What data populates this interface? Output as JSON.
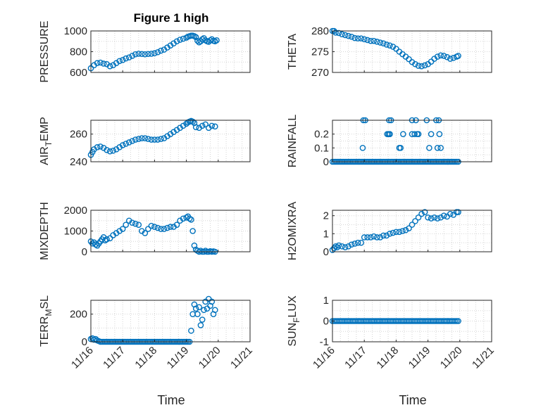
{
  "title": "Figure 1 high",
  "colors": {
    "marker": "#0072BD",
    "axis": "#262626",
    "grid": "#d6d6d6"
  },
  "chart_data": [
    {
      "type": "scatter",
      "id": "pressure",
      "title": "Figure 1 high",
      "ylabel": "PRESSURE",
      "ylim": [
        600,
        1000
      ],
      "yticks": [
        600,
        800,
        1000
      ],
      "ytick_labels": [
        "600",
        "800",
        "1000"
      ],
      "xlim": [
        0,
        5
      ],
      "xticks": [
        0,
        1,
        2,
        3,
        4,
        5
      ],
      "xtick_labels": [
        "11/16",
        "11/17",
        "11/18",
        "11/19",
        "11/20",
        "11/21"
      ],
      "x": [
        0,
        0.1,
        0.2,
        0.3,
        0.4,
        0.5,
        0.6,
        0.7,
        0.8,
        0.9,
        1.0,
        1.1,
        1.2,
        1.3,
        1.4,
        1.5,
        1.6,
        1.7,
        1.8,
        1.9,
        2.0,
        2.1,
        2.2,
        2.3,
        2.4,
        2.5,
        2.6,
        2.7,
        2.8,
        2.9,
        3.0,
        3.05,
        3.1,
        3.15,
        3.2,
        3.25,
        3.3,
        3.35,
        3.4,
        3.45,
        3.5,
        3.55,
        3.6,
        3.65,
        3.7,
        3.75,
        3.8,
        3.85,
        3.9,
        3.95
      ],
      "y": [
        640,
        670,
        690,
        695,
        685,
        680,
        660,
        670,
        690,
        710,
        720,
        735,
        745,
        760,
        775,
        780,
        778,
        775,
        778,
        780,
        785,
        795,
        810,
        820,
        840,
        860,
        880,
        900,
        915,
        925,
        935,
        945,
        950,
        955,
        955,
        950,
        940,
        905,
        890,
        900,
        920,
        930,
        910,
        900,
        895,
        910,
        920,
        905,
        900,
        910
      ]
    },
    {
      "type": "scatter",
      "id": "theta",
      "ylabel": "THETA",
      "ylim": [
        270,
        280
      ],
      "yticks": [
        270,
        275,
        280
      ],
      "ytick_labels": [
        "270",
        "275",
        "280"
      ],
      "xlim": [
        0,
        5
      ],
      "xticks": [
        0,
        1,
        2,
        3,
        4,
        5
      ],
      "xtick_labels": [
        "11/16",
        "11/17",
        "11/18",
        "11/19",
        "11/20",
        "11/21"
      ],
      "x": [
        0,
        0.05,
        0.1,
        0.2,
        0.3,
        0.4,
        0.5,
        0.6,
        0.7,
        0.8,
        0.9,
        1.0,
        1.1,
        1.2,
        1.3,
        1.4,
        1.5,
        1.6,
        1.7,
        1.8,
        1.9,
        2.0,
        2.1,
        2.2,
        2.3,
        2.4,
        2.5,
        2.6,
        2.7,
        2.8,
        2.9,
        3.0,
        3.1,
        3.2,
        3.3,
        3.4,
        3.5,
        3.6,
        3.7,
        3.8,
        3.9,
        3.95
      ],
      "y": [
        280,
        280,
        279.6,
        279.5,
        279.2,
        279,
        278.8,
        278.6,
        278.3,
        278.2,
        278.2,
        278,
        277.8,
        277.6,
        277.6,
        277.4,
        277.2,
        277,
        276.7,
        276.5,
        276.2,
        275.7,
        275,
        274.4,
        273.8,
        273.2,
        272.5,
        272,
        271.6,
        271.5,
        271.7,
        272,
        272.6,
        273.3,
        273.8,
        274.1,
        274,
        273.7,
        273.3,
        273.5,
        273.8,
        274
      ]
    },
    {
      "type": "scatter",
      "id": "air_temp",
      "ylabel": "AIR_TEMP",
      "ylim": [
        240,
        270
      ],
      "yticks": [
        240,
        260
      ],
      "ytick_labels": [
        "240",
        "260"
      ],
      "xlim": [
        0,
        5
      ],
      "xticks": [
        0,
        1,
        2,
        3,
        4,
        5
      ],
      "xtick_labels": [
        "11/16",
        "11/17",
        "11/18",
        "11/19",
        "11/20",
        "11/21"
      ],
      "x": [
        0,
        0.05,
        0.1,
        0.2,
        0.3,
        0.4,
        0.5,
        0.6,
        0.7,
        0.8,
        0.9,
        1.0,
        1.1,
        1.2,
        1.3,
        1.4,
        1.5,
        1.6,
        1.7,
        1.8,
        1.9,
        2.0,
        2.1,
        2.2,
        2.3,
        2.4,
        2.5,
        2.6,
        2.7,
        2.8,
        2.9,
        3.0,
        3.05,
        3.1,
        3.15,
        3.2,
        3.25,
        3.3,
        3.4,
        3.5,
        3.6,
        3.7,
        3.8,
        3.9
      ],
      "y": [
        245,
        247,
        249,
        250.5,
        251,
        250,
        248.5,
        247.5,
        248,
        249,
        250.5,
        252,
        253,
        254,
        255,
        256,
        256.5,
        257,
        257,
        256.5,
        256,
        256,
        256,
        256.5,
        257,
        258.5,
        260,
        261.5,
        263,
        264.5,
        266,
        267.5,
        268.5,
        269,
        269.5,
        269,
        268,
        265,
        264.5,
        266,
        267,
        264.5,
        266,
        265.5
      ]
    },
    {
      "type": "scatter",
      "id": "rainfall",
      "ylabel": "RAINFALL",
      "ylim": [
        0,
        0.3
      ],
      "yticks": [
        0,
        0.1,
        0.2
      ],
      "ytick_labels": [
        "0",
        "0.1",
        "0.2"
      ],
      "xlim": [
        0,
        5
      ],
      "xticks": [
        0,
        1,
        2,
        3,
        4,
        5
      ],
      "xtick_labels": [
        "11/16",
        "11/17",
        "11/18",
        "11/19",
        "11/20",
        "11/21"
      ],
      "x": [
        0,
        0.05,
        0.1,
        0.15,
        0.2,
        0.25,
        0.3,
        0.35,
        0.4,
        0.45,
        0.5,
        0.55,
        0.6,
        0.65,
        0.7,
        0.75,
        0.8,
        0.85,
        0.9,
        0.95,
        1.0,
        1.05,
        1.1,
        1.15,
        1.2,
        1.25,
        1.3,
        1.35,
        1.4,
        1.45,
        1.5,
        1.55,
        1.6,
        1.65,
        1.7,
        1.75,
        1.8,
        1.85,
        1.9,
        1.95,
        2.0,
        2.05,
        2.1,
        2.15,
        2.2,
        2.25,
        2.3,
        2.35,
        2.4,
        2.45,
        2.5,
        2.55,
        2.6,
        2.65,
        2.7,
        2.75,
        2.8,
        2.85,
        2.9,
        2.95,
        3.0,
        3.05,
        3.1,
        3.15,
        3.2,
        3.25,
        3.3,
        3.35,
        3.4,
        3.45,
        3.5,
        3.55,
        3.6,
        3.65,
        3.7,
        3.75,
        3.8,
        3.85,
        3.9,
        3.95,
        0.97,
        1.03,
        0.95,
        1.72,
        1.76,
        1.8,
        1.84,
        1.78,
        1.8,
        2.1,
        2.14,
        2.22,
        2.5,
        2.5,
        2.62,
        2.58,
        2.66,
        2.7,
        2.96,
        3.1,
        3.04,
        3.34,
        3.26,
        3.3,
        3.4,
        3.36
      ],
      "y": [
        0,
        0,
        0,
        0,
        0,
        0,
        0,
        0,
        0,
        0,
        0,
        0,
        0,
        0,
        0,
        0,
        0,
        0,
        0,
        0,
        0,
        0,
        0,
        0,
        0,
        0,
        0,
        0,
        0,
        0,
        0,
        0,
        0,
        0,
        0,
        0,
        0,
        0,
        0,
        0,
        0,
        0,
        0,
        0,
        0,
        0,
        0,
        0,
        0,
        0,
        0,
        0,
        0,
        0,
        0,
        0,
        0,
        0,
        0,
        0,
        0,
        0,
        0,
        0,
        0,
        0,
        0,
        0,
        0,
        0,
        0,
        0,
        0,
        0,
        0,
        0,
        0,
        0,
        0,
        0,
        0.3,
        0.3,
        0.1,
        0.2,
        0.2,
        0.2,
        0.3,
        0.3,
        0.2,
        0.1,
        0.1,
        0.2,
        0.3,
        0.2,
        0.3,
        0.2,
        0.2,
        0.2,
        0.3,
        0.2,
        0.1,
        0.3,
        0.3,
        0.1,
        0.1,
        0.2
      ]
    },
    {
      "type": "scatter",
      "id": "mixdepth",
      "ylabel": "MIXDEPTH",
      "ylim": [
        0,
        2000
      ],
      "yticks": [
        0,
        1000,
        2000
      ],
      "ytick_labels": [
        "0",
        "1000",
        "2000"
      ],
      "xlim": [
        0,
        5
      ],
      "xticks": [
        0,
        1,
        2,
        3,
        4,
        5
      ],
      "xtick_labels": [
        "11/16",
        "11/17",
        "11/18",
        "11/19",
        "11/20",
        "11/21"
      ],
      "x": [
        0,
        0.05,
        0.1,
        0.15,
        0.2,
        0.25,
        0.3,
        0.35,
        0.4,
        0.45,
        0.5,
        0.6,
        0.7,
        0.8,
        0.9,
        1.0,
        1.1,
        1.2,
        1.3,
        1.4,
        1.5,
        1.6,
        1.7,
        1.8,
        1.9,
        2.0,
        2.1,
        2.2,
        2.3,
        2.4,
        2.5,
        2.6,
        2.7,
        2.8,
        2.9,
        3.0,
        3.05,
        3.1,
        3.15,
        3.2,
        3.25,
        3.3,
        3.35,
        3.4,
        3.45,
        3.5,
        3.55,
        3.6,
        3.65,
        3.7,
        3.75,
        3.8,
        3.85,
        3.9
      ],
      "y": [
        500,
        400,
        450,
        350,
        300,
        400,
        500,
        600,
        700,
        550,
        600,
        650,
        800,
        900,
        1000,
        1100,
        1300,
        1500,
        1400,
        1350,
        1300,
        1000,
        900,
        1100,
        1250,
        1200,
        1150,
        1100,
        1100,
        1150,
        1200,
        1200,
        1300,
        1500,
        1600,
        1650,
        1700,
        1600,
        1550,
        1000,
        300,
        100,
        50,
        0,
        50,
        0,
        0,
        50,
        0,
        0,
        30,
        0,
        20,
        0
      ]
    },
    {
      "type": "scatter",
      "id": "h2omixra",
      "ylabel": "H2OMIXRA",
      "ylim": [
        0,
        2.3
      ],
      "yticks": [
        0,
        1,
        2
      ],
      "ytick_labels": [
        "0",
        "1",
        "2"
      ],
      "xlim": [
        0,
        5
      ],
      "xticks": [
        0,
        1,
        2,
        3,
        4,
        5
      ],
      "xtick_labels": [
        "11/16",
        "11/17",
        "11/18",
        "11/19",
        "11/20",
        "11/21"
      ],
      "x": [
        0,
        0.05,
        0.1,
        0.15,
        0.2,
        0.3,
        0.4,
        0.5,
        0.6,
        0.7,
        0.8,
        0.9,
        1.0,
        1.1,
        1.2,
        1.3,
        1.4,
        1.5,
        1.6,
        1.7,
        1.8,
        1.9,
        2.0,
        2.1,
        2.2,
        2.3,
        2.4,
        2.5,
        2.6,
        2.7,
        2.8,
        2.9,
        3.0,
        3.1,
        3.2,
        3.3,
        3.4,
        3.5,
        3.6,
        3.7,
        3.8,
        3.9,
        3.95
      ],
      "y": [
        0.1,
        0.2,
        0.3,
        0.25,
        0.35,
        0.3,
        0.25,
        0.3,
        0.4,
        0.45,
        0.5,
        0.5,
        0.8,
        0.8,
        0.8,
        0.85,
        0.8,
        0.8,
        0.9,
        0.9,
        1.0,
        1.05,
        1.1,
        1.1,
        1.15,
        1.2,
        1.3,
        1.5,
        1.7,
        1.9,
        2.1,
        2.2,
        1.9,
        1.85,
        1.9,
        1.85,
        1.9,
        2.0,
        1.95,
        2.1,
        2.05,
        2.2,
        2.2
      ]
    },
    {
      "type": "scatter",
      "id": "terr_msl",
      "ylabel": "TERR_MSL",
      "ylim": [
        0,
        300
      ],
      "yticks": [
        0,
        200
      ],
      "ytick_labels": [
        "0",
        "200"
      ],
      "xlim": [
        0,
        5
      ],
      "xticks": [
        0,
        1,
        2,
        3,
        4,
        5
      ],
      "xtick_labels": [
        "11/16",
        "11/17",
        "11/18",
        "11/19",
        "11/20",
        "11/21"
      ],
      "x": [
        0,
        0.05,
        0.1,
        0.15,
        0.2,
        0.25,
        0.3,
        0.35,
        0.4,
        0.45,
        0.5,
        0.55,
        0.6,
        0.65,
        0.7,
        0.75,
        0.8,
        0.85,
        0.9,
        0.95,
        1.0,
        1.05,
        1.1,
        1.15,
        1.2,
        1.25,
        1.3,
        1.35,
        1.4,
        1.45,
        1.5,
        1.55,
        1.6,
        1.65,
        1.7,
        1.75,
        1.8,
        1.85,
        1.9,
        1.95,
        2.0,
        2.05,
        2.1,
        2.15,
        2.2,
        2.25,
        2.3,
        2.35,
        2.4,
        2.45,
        2.5,
        2.55,
        2.6,
        2.65,
        2.7,
        2.75,
        2.8,
        2.85,
        2.9,
        2.95,
        3.0,
        3.05,
        3.1,
        3.15,
        3.2,
        3.25,
        3.3,
        3.35,
        3.4,
        3.45,
        3.5,
        3.55,
        3.6,
        3.65,
        3.7,
        3.75,
        3.8,
        3.85,
        3.9
      ],
      "y": [
        20,
        25,
        15,
        20,
        10,
        5,
        0,
        0,
        0,
        0,
        0,
        0,
        0,
        0,
        0,
        0,
        0,
        0,
        0,
        0,
        0,
        0,
        0,
        0,
        0,
        0,
        0,
        0,
        0,
        0,
        0,
        0,
        0,
        0,
        0,
        0,
        0,
        0,
        0,
        0,
        0,
        0,
        0,
        0,
        0,
        0,
        0,
        0,
        0,
        0,
        0,
        0,
        0,
        0,
        0,
        0,
        0,
        0,
        0,
        0,
        0,
        0,
        0,
        80,
        200,
        270,
        240,
        200,
        250,
        120,
        160,
        230,
        290,
        240,
        310,
        260,
        290,
        200,
        230
      ]
    },
    {
      "type": "scatter",
      "id": "sun_flux",
      "ylabel": "SUN_FLUX",
      "ylim": [
        -1,
        1
      ],
      "yticks": [
        -1,
        0,
        1
      ],
      "ytick_labels": [
        "-1",
        "0",
        "1"
      ],
      "xlim": [
        0,
        5
      ],
      "xticks": [
        0,
        1,
        2,
        3,
        4,
        5
      ],
      "xtick_labels": [
        "11/16",
        "11/17",
        "11/18",
        "11/19",
        "11/20",
        "11/21"
      ],
      "x": [
        0,
        0.05,
        0.1,
        0.15,
        0.2,
        0.25,
        0.3,
        0.35,
        0.4,
        0.45,
        0.5,
        0.55,
        0.6,
        0.65,
        0.7,
        0.75,
        0.8,
        0.85,
        0.9,
        0.95,
        1.0,
        1.05,
        1.1,
        1.15,
        1.2,
        1.25,
        1.3,
        1.35,
        1.4,
        1.45,
        1.5,
        1.55,
        1.6,
        1.65,
        1.7,
        1.75,
        1.8,
        1.85,
        1.9,
        1.95,
        2.0,
        2.05,
        2.1,
        2.15,
        2.2,
        2.25,
        2.3,
        2.35,
        2.4,
        2.45,
        2.5,
        2.55,
        2.6,
        2.65,
        2.7,
        2.75,
        2.8,
        2.85,
        2.9,
        2.95,
        3.0,
        3.05,
        3.1,
        3.15,
        3.2,
        3.25,
        3.3,
        3.35,
        3.4,
        3.45,
        3.5,
        3.55,
        3.6,
        3.65,
        3.7,
        3.75,
        3.8,
        3.85,
        3.9,
        3.95
      ],
      "y": [
        0,
        0,
        0,
        0,
        0,
        0,
        0,
        0,
        0,
        0,
        0,
        0,
        0,
        0,
        0,
        0,
        0,
        0,
        0,
        0,
        0,
        0,
        0,
        0,
        0,
        0,
        0,
        0,
        0,
        0,
        0,
        0,
        0,
        0,
        0,
        0,
        0,
        0,
        0,
        0,
        0,
        0,
        0,
        0,
        0,
        0,
        0,
        0,
        0,
        0,
        0,
        0,
        0,
        0,
        0,
        0,
        0,
        0,
        0,
        0,
        0,
        0,
        0,
        0,
        0,
        0,
        0,
        0,
        0,
        0,
        0,
        0,
        0,
        0,
        0,
        0,
        0,
        0,
        0,
        0
      ]
    }
  ],
  "xlabels": {
    "left": "Time",
    "right": "Time"
  }
}
